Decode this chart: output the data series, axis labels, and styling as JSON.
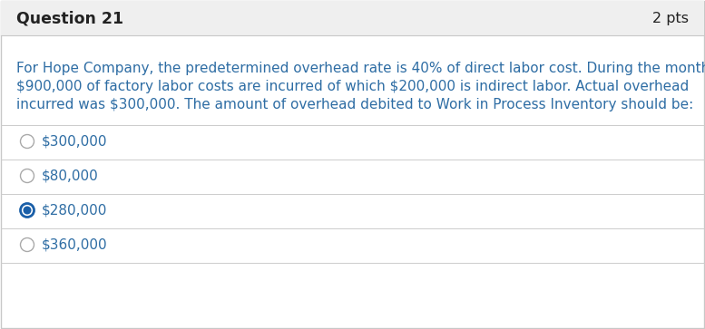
{
  "title_left": "Question 21",
  "title_right": "2 pts",
  "header_bg": "#efefef",
  "body_bg": "#ffffff",
  "border_color": "#c8c8c8",
  "title_color": "#222222",
  "question_color": "#2e6da4",
  "option_color": "#2e6da4",
  "question_line1": "For Hope Company, the predetermined overhead rate is 40% of direct labor cost. During the month,",
  "question_line2": "$900,000 of factory labor costs are incurred of which $200,000 is indirect labor. Actual overhead",
  "question_line3": "incurred was $300,000. The amount of overhead debited to Work in Process Inventory should be:",
  "options": [
    "$300,000",
    "$80,000",
    "$280,000",
    "$360,000"
  ],
  "selected_index": 2,
  "selected_color": "#1a5fa8",
  "unselected_color": "#aaaaaa",
  "divider_color": "#cccccc",
  "title_fontsize": 12.5,
  "pts_fontsize": 11.5,
  "question_fontsize": 11.0,
  "option_fontsize": 11.0
}
